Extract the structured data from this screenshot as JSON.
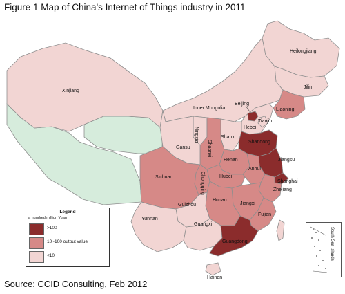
{
  "title": "Figure 1 Map of China's Internet of Things industry in 2011",
  "source": "Source: CCID Consulting, Feb 2012",
  "colors": {
    "high": "#8b2c2c",
    "mid": "#d68987",
    "low": "#f2d5d3",
    "neighbor": "#d6ecdc",
    "border": "#8e8e8e"
  },
  "legend": {
    "title": "Legend",
    "unit": "a hundred  million Yuan",
    "items": [
      {
        "label": ">100",
        "color": "#8b2c2c"
      },
      {
        "label": "10~100   output value",
        "color": "#d68987"
      },
      {
        "label": "<10",
        "color": "#f2d5d3"
      }
    ]
  },
  "provinces": [
    {
      "name": "Heilongjiang",
      "level": "low"
    },
    {
      "name": "Jilin",
      "level": "low"
    },
    {
      "name": "Liaoning",
      "level": "mid"
    },
    {
      "name": "Inner Mongolia",
      "level": "low"
    },
    {
      "name": "Beijing",
      "level": "high"
    },
    {
      "name": "Tianjin",
      "level": "low"
    },
    {
      "name": "Hebei",
      "level": "low"
    },
    {
      "name": "Shandong",
      "level": "high"
    },
    {
      "name": "Jiangsu",
      "level": "high"
    },
    {
      "name": "Shanghai",
      "level": "high"
    },
    {
      "name": "Zhejiang",
      "level": "mid"
    },
    {
      "name": "Anhui",
      "level": "mid"
    },
    {
      "name": "Henan",
      "level": "mid"
    },
    {
      "name": "Shanxi",
      "level": "low"
    },
    {
      "name": "Shaanxi",
      "level": "mid"
    },
    {
      "name": "Ningxia",
      "level": "low"
    },
    {
      "name": "Gansu",
      "level": "low"
    },
    {
      "name": "Xinjiang",
      "level": "low"
    },
    {
      "name": "Sichuan",
      "level": "mid"
    },
    {
      "name": "Chongqing",
      "level": "mid"
    },
    {
      "name": "Hubei",
      "level": "mid"
    },
    {
      "name": "Hunan",
      "level": "mid"
    },
    {
      "name": "Jiangxi",
      "level": "mid"
    },
    {
      "name": "Fujian",
      "level": "mid"
    },
    {
      "name": "Guizhou",
      "level": "low"
    },
    {
      "name": "Yunnan",
      "level": "low"
    },
    {
      "name": "Guangxi",
      "level": "low"
    },
    {
      "name": "Guangdong",
      "level": "high"
    },
    {
      "name": "Hainan",
      "level": "low"
    }
  ],
  "inset": {
    "label": "South Sea Islands"
  }
}
